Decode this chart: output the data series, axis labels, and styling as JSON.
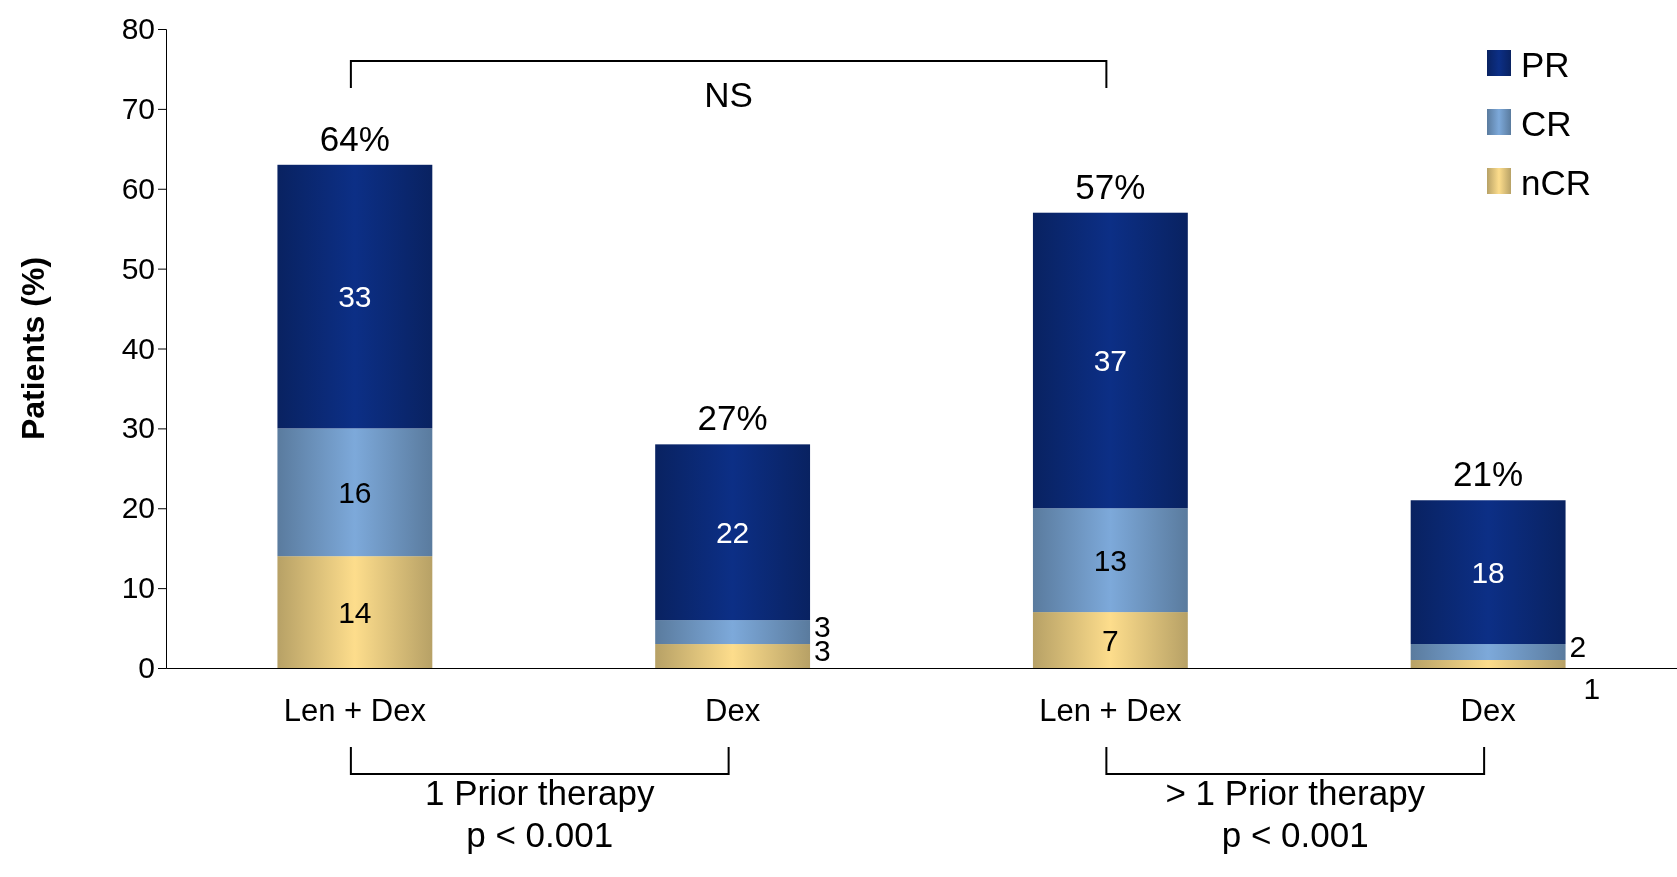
{
  "chart_data": {
    "type": "bar",
    "stacked": true,
    "ylabel": "Patients (%)",
    "categories": [
      "Len + Dex",
      "Dex",
      "Len + Dex",
      "Dex"
    ],
    "series": [
      {
        "name": "nCR",
        "color": "#e3c77e",
        "values": [
          14,
          3,
          7,
          1
        ]
      },
      {
        "name": "CR",
        "color": "#7098c4",
        "values": [
          16,
          3,
          13,
          2
        ]
      },
      {
        "name": "PR",
        "color": "#0b2a78",
        "values": [
          33,
          22,
          37,
          18
        ]
      }
    ],
    "totals": [
      "64%",
      "27%",
      "57%",
      "21%"
    ],
    "data_labels": true,
    "ylim": [
      0,
      80
    ],
    "yticks": [
      0,
      10,
      20,
      30,
      40,
      50,
      60,
      70,
      80
    ],
    "grid": false,
    "legend": "top right",
    "annotations": [
      "NS",
      "1 Prior therapy\np < 0.001",
      "> 1 Prior therapy\np < 0.001"
    ]
  }
}
